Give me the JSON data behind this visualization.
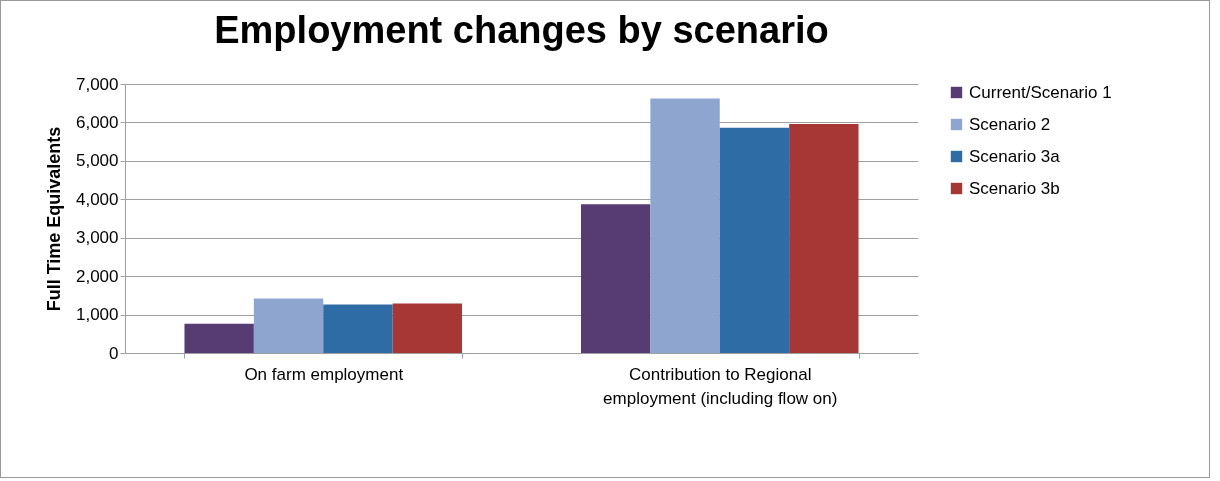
{
  "chart_data": {
    "type": "bar",
    "title": "Employment changes by scenario",
    "ylabel": "Full Time Equivalents",
    "categories": [
      "On farm employment",
      "Contribution to Regional employment (including flow on)"
    ],
    "series": [
      {
        "name": "Current/Scenario 1",
        "color": "#573b73",
        "values": [
          760,
          3870
        ]
      },
      {
        "name": "Scenario 2",
        "color": "#8ea6cf",
        "values": [
          1420,
          6620
        ]
      },
      {
        "name": "Scenario 3a",
        "color": "#2e6ca6",
        "values": [
          1260,
          5860
        ]
      },
      {
        "name": "Scenario 3b",
        "color": "#a73735",
        "values": [
          1290,
          5960
        ]
      }
    ],
    "ylim": [
      0,
      7000
    ],
    "yticks": [
      0,
      {
        "value": 1000,
        "label": "1,000"
      },
      {
        "value": 2000,
        "label": "2,000"
      },
      {
        "value": 3000,
        "label": "3,000"
      },
      {
        "value": 4000,
        "label": "4,000"
      },
      {
        "value": 5000,
        "label": "5,000"
      },
      {
        "value": 6000,
        "label": "6,000"
      },
      {
        "value": 7000,
        "label": "7,000"
      }
    ],
    "grid": "y",
    "legend": "right"
  }
}
